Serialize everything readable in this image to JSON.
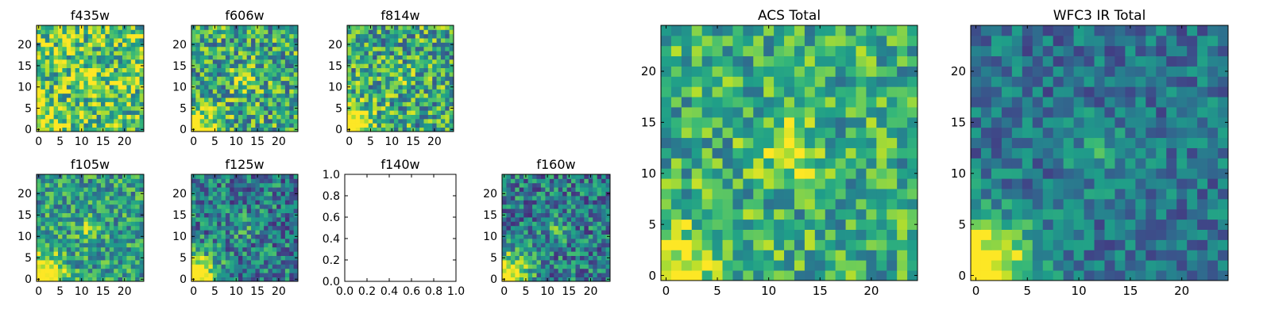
{
  "chart_data": [
    {
      "type": "heatmap",
      "title": "f435w",
      "x_ticks": [
        "0",
        "5",
        "10",
        "15",
        "20"
      ],
      "y_ticks": [
        "0",
        "5",
        "10",
        "15",
        "20"
      ],
      "grid_size": 25,
      "colormap": "viridis",
      "pattern_seed": 11,
      "bright_corner": 0.35,
      "bright_center": 0.25,
      "base_level": 0.72,
      "noise": 0.35
    },
    {
      "type": "heatmap",
      "title": "f606w",
      "x_ticks": [
        "0",
        "5",
        "10",
        "15",
        "20"
      ],
      "y_ticks": [
        "0",
        "5",
        "10",
        "15",
        "20"
      ],
      "grid_size": 25,
      "colormap": "viridis",
      "pattern_seed": 23,
      "bright_corner": 0.55,
      "bright_center": 0.35,
      "base_level": 0.6,
      "noise": 0.35
    },
    {
      "type": "heatmap",
      "title": "f814w",
      "x_ticks": [
        "0",
        "5",
        "10",
        "15",
        "20"
      ],
      "y_ticks": [
        "0",
        "5",
        "10",
        "15",
        "20"
      ],
      "grid_size": 25,
      "colormap": "viridis",
      "pattern_seed": 37,
      "bright_corner": 0.7,
      "bright_center": 0.15,
      "base_level": 0.6,
      "noise": 0.35
    },
    {
      "type": "heatmap",
      "title": "f105w",
      "x_ticks": [
        "0",
        "5",
        "10",
        "15",
        "20"
      ],
      "y_ticks": [
        "0",
        "5",
        "10",
        "15",
        "20"
      ],
      "grid_size": 25,
      "colormap": "viridis",
      "pattern_seed": 41,
      "bright_corner": 0.8,
      "bright_center": 0.25,
      "base_level": 0.55,
      "noise": 0.28
    },
    {
      "type": "heatmap",
      "title": "f125w",
      "x_ticks": [
        "0",
        "5",
        "10",
        "15",
        "20"
      ],
      "y_ticks": [
        "0",
        "5",
        "10",
        "15",
        "20"
      ],
      "grid_size": 25,
      "colormap": "viridis",
      "pattern_seed": 53,
      "bright_corner": 0.85,
      "bright_center": 0.15,
      "base_level": 0.42,
      "noise": 0.3
    },
    {
      "type": "empty",
      "title": "f140w",
      "x_ticks": [
        "0.0",
        "0.2",
        "0.4",
        "0.6",
        "0.8",
        "1.0"
      ],
      "y_ticks": [
        "0.0",
        "0.2",
        "0.4",
        "0.6",
        "0.8",
        "1.0"
      ],
      "xlim": [
        0,
        1
      ],
      "ylim": [
        0,
        1
      ]
    },
    {
      "type": "heatmap",
      "title": "f160w",
      "x_ticks": [
        "0",
        "5",
        "10",
        "15",
        "20"
      ],
      "y_ticks": [
        "0",
        "5",
        "10",
        "15",
        "20"
      ],
      "grid_size": 25,
      "colormap": "viridis",
      "pattern_seed": 67,
      "bright_corner": 0.85,
      "bright_center": 0.2,
      "base_level": 0.42,
      "noise": 0.3
    },
    {
      "type": "heatmap",
      "title": "ACS Total",
      "x_ticks": [
        "0",
        "5",
        "10",
        "15",
        "20"
      ],
      "y_ticks": [
        "0",
        "5",
        "10",
        "15",
        "20"
      ],
      "grid_size": 25,
      "colormap": "viridis",
      "pattern_seed": 79,
      "bright_corner": 0.45,
      "bright_center": 0.35,
      "base_level": 0.62,
      "noise": 0.28
    },
    {
      "type": "heatmap",
      "title": "WFC3 IR Total",
      "x_ticks": [
        "0",
        "5",
        "10",
        "15",
        "20"
      ],
      "y_ticks": [
        "0",
        "5",
        "10",
        "15",
        "20"
      ],
      "grid_size": 25,
      "colormap": "viridis",
      "pattern_seed": 97,
      "bright_corner": 0.85,
      "bright_center": 0.2,
      "base_level": 0.38,
      "noise": 0.2
    }
  ]
}
